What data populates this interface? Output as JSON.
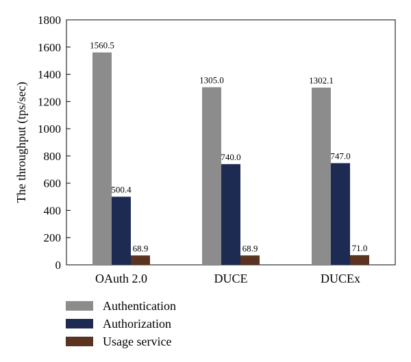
{
  "chart_data": {
    "type": "bar",
    "title": "",
    "xlabel": "",
    "ylabel": "The throughput (tps/sec)",
    "ylim": [
      0,
      1800
    ],
    "yticks": [
      0,
      200,
      400,
      600,
      800,
      1000,
      1200,
      1400,
      1600,
      1800
    ],
    "grid": false,
    "legend_position": "bottom",
    "categories": [
      "OAuth 2.0",
      "DUCE",
      "DUCEx"
    ],
    "series": [
      {
        "name": "Authentication",
        "color": "#8c8c8c",
        "values": [
          1560.5,
          1305.0,
          1302.1
        ],
        "labels": [
          "1560.5",
          "1305.0",
          "1302.1"
        ]
      },
      {
        "name": "Authorization",
        "color": "#1d2a52",
        "values": [
          500.4,
          740.0,
          747.0
        ],
        "labels": [
          "500.4",
          "740.0",
          "747.0"
        ]
      },
      {
        "name": "Usage service",
        "color": "#5a3420",
        "values": [
          68.9,
          68.9,
          71.0
        ],
        "labels": [
          "68.9",
          "68.9",
          "71.0"
        ]
      }
    ]
  }
}
